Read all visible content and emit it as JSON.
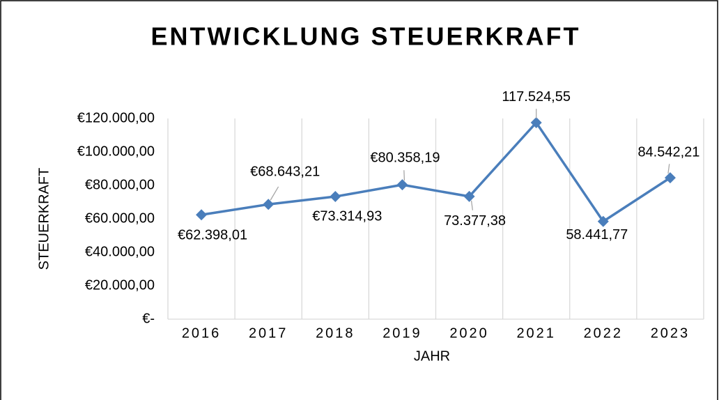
{
  "chart_data": {
    "type": "line",
    "title": "ENTWICKLUNG STEUERKRAFT",
    "x_label": "JAHR",
    "y_label": "STEUERKRAFT",
    "categories": [
      "2016",
      "2017",
      "2018",
      "2019",
      "2020",
      "2021",
      "2022",
      "2023"
    ],
    "series": [
      {
        "name": "Steuerkraft",
        "color": "#4a7ebb",
        "values": [
          62398.01,
          68643.21,
          73314.93,
          80358.19,
          73377.38,
          117524.55,
          58441.77,
          84542.21
        ],
        "value_labels": [
          "€62.398,01",
          "€68.643,21",
          "€73.314,93",
          "€80.358,19",
          "73.377,38",
          "117.524,55",
          "58.441,77",
          "84.542,21"
        ]
      }
    ],
    "ylim": [
      0,
      120000
    ],
    "yticks": [
      {
        "value": 0,
        "label": "€-"
      },
      {
        "value": 20000,
        "label": "€20.000,00"
      },
      {
        "value": 40000,
        "label": "€40.000,00"
      },
      {
        "value": 60000,
        "label": "€60.000,00"
      },
      {
        "value": 80000,
        "label": "€80.000,00"
      },
      {
        "value": 100000,
        "label": "€100.000,00"
      },
      {
        "value": 120000,
        "label": "€120.000,00"
      }
    ],
    "grid": true
  }
}
